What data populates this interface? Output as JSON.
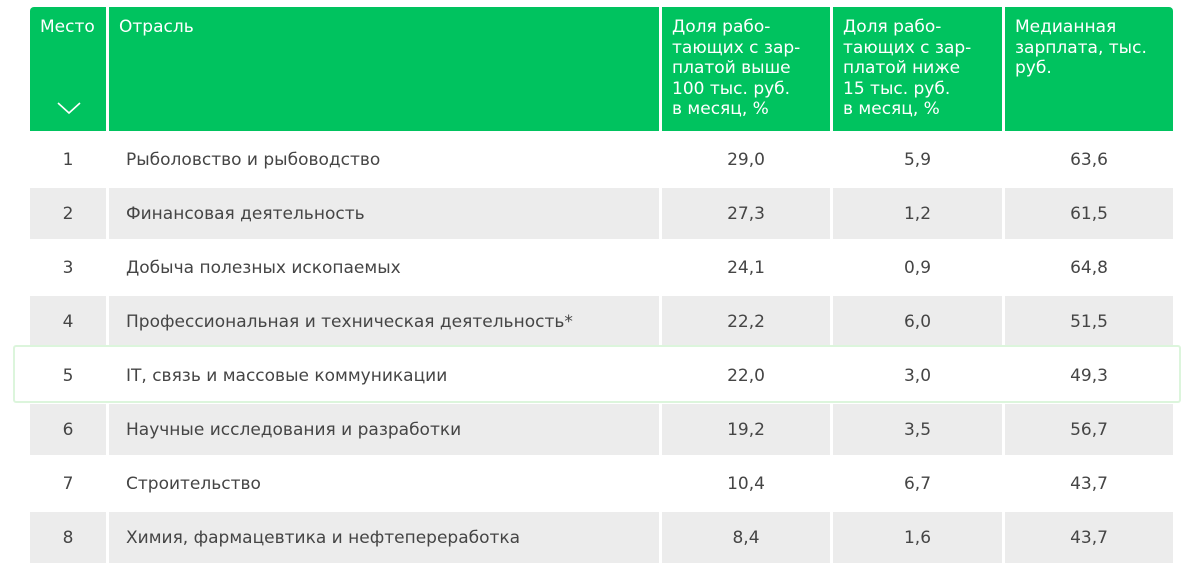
{
  "header": {
    "place": "Место",
    "industry": "Отрасль",
    "share_above": [
      "Доля рабо-",
      "тающих с зар-",
      "платой выше",
      "100 тыс. руб.",
      "в месяц, %"
    ],
    "share_below": [
      "Доля рабо-",
      "тающих с зар-",
      "платой ниже",
      "15 тыс. руб.",
      "в месяц, %"
    ],
    "median": [
      "Медианная",
      "зарплата, тыс.",
      "руб."
    ]
  },
  "rows": [
    {
      "place": "1",
      "industry": "Рыболовство и рыбоводство",
      "above": "29,0",
      "below": "5,9",
      "median": "63,6"
    },
    {
      "place": "2",
      "industry": "Финансовая деятельность",
      "above": "27,3",
      "below": "1,2",
      "median": "61,5"
    },
    {
      "place": "3",
      "industry": "Добыча полезных ископаемых",
      "above": "24,1",
      "below": "0,9",
      "median": "64,8"
    },
    {
      "place": "4",
      "industry": "Профессиональная и техническая деятельность*",
      "above": "22,2",
      "below": "6,0",
      "median": "51,5"
    },
    {
      "place": "5",
      "industry": "IT, связь и массовые коммуникации",
      "above": "22,0",
      "below": "3,0",
      "median": "49,3"
    },
    {
      "place": "6",
      "industry": "Научные исследования и разработки",
      "above": "19,2",
      "below": "3,5",
      "median": "56,7"
    },
    {
      "place": "7",
      "industry": "Строительство",
      "above": "10,4",
      "below": "6,7",
      "median": "43,7"
    },
    {
      "place": "8",
      "industry": "Химия, фармацевтика и нефтепереработка",
      "above": "8,4",
      "below": "1,6",
      "median": "43,7"
    }
  ],
  "colors": {
    "header_bg": "#00c35f",
    "stripe_bg": "#ececec",
    "highlight_border": "#dcf5dc"
  },
  "icons": {
    "sort": "chevron-down-icon"
  }
}
